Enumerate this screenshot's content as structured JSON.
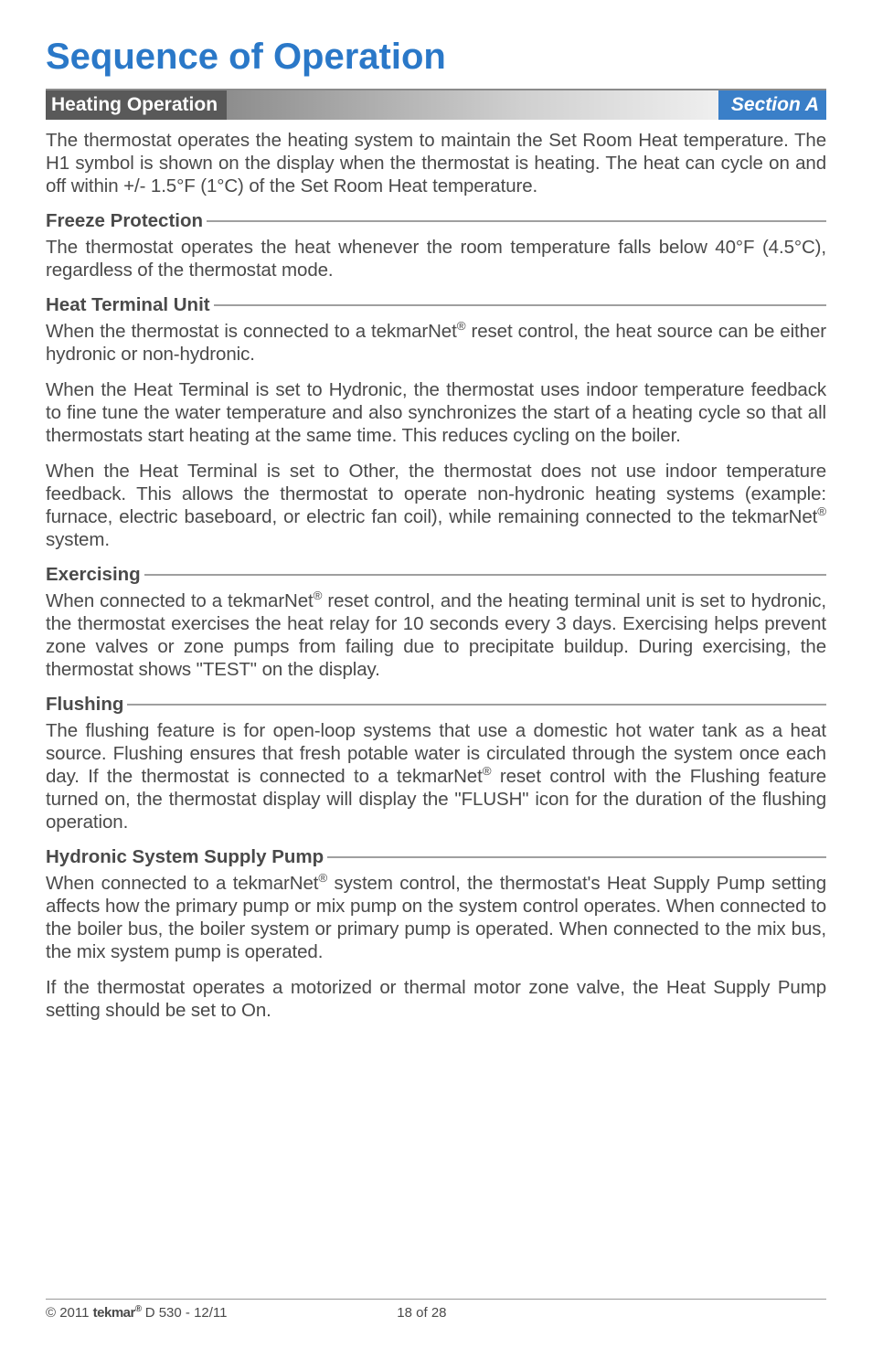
{
  "page_title": "Sequence of Operation",
  "page_title_color": "#2a78c8",
  "section_bar": {
    "left": "Heating Operation",
    "right": "Section A",
    "left_bg": "#595959",
    "right_bg": "#3a7fc8"
  },
  "intro_para": "The thermostat operates the heating system to maintain the Set Room Heat temperature. The H1 symbol is shown on the display when the thermostat is heating. The heat can cycle on and off within +/- 1.5°F (1°C) of the Set Room Heat temperature.",
  "sections": {
    "freeze": {
      "heading": "Freeze Protection",
      "para": "The thermostat operates the heat whenever the room temperature falls below 40°F (4.5°C), regardless of the thermostat mode."
    },
    "heat_terminal": {
      "heading": "Heat Terminal Unit",
      "p1_a": "When the thermostat is connected to a tekmarNet",
      "p1_b": " reset control, the heat source can be either hydronic or non-hydronic.",
      "p2": "When the Heat Terminal is set to Hydronic, the thermostat uses indoor temperature feedback to fine tune the water temperature and also synchronizes the start of a heating cycle so that all thermostats start heating at the same time. This reduces cycling on the boiler.",
      "p3_a": "When the Heat Terminal is set to Other, the thermostat does not use indoor temperature feedback. This allows the thermostat to operate non-hydronic heating systems (example: furnace, electric baseboard, or electric fan coil), while remaining connected to the tekmarNet",
      "p3_b": " system."
    },
    "exercising": {
      "heading": "Exercising",
      "p_a": "When connected to a tekmarNet",
      "p_b": " reset control, and the heating terminal unit is set to hydronic, the thermostat exercises the heat relay for 10 seconds every 3 days. Exercising helps prevent zone valves or zone pumps from failing due to precipitate buildup. During exercising, the thermostat shows \"TEST\" on the display."
    },
    "flushing": {
      "heading": "Flushing",
      "p_a": "The flushing feature is for open-loop systems that use a domestic hot water tank as a heat source. Flushing ensures that fresh potable water is circulated through the system once each day. If the thermostat is connected to a tekmarNet",
      "p_b": " reset control with the Flushing feature turned on, the thermostat display will display the \"FLUSH\" icon for the duration of the flushing operation."
    },
    "hydronic": {
      "heading": "Hydronic System Supply Pump",
      "p1_a": "When connected to a tekmarNet",
      "p1_b": " system control, the thermostat's Heat Supply Pump setting affects how the primary pump or mix pump on the system control operates. When connected to the boiler bus, the boiler system or primary pump is operated. When connected to the mix bus, the mix system pump is operated.",
      "p2": "If the thermostat operates a motorized or thermal motor zone valve, the Heat Supply Pump setting should be set to On."
    }
  },
  "reg": "®",
  "footer": {
    "copyright": "© 2011 ",
    "brand": "tekmar",
    "brand_sup": "®",
    "doc": "  D 530 - 12/11",
    "page": "18 of 28"
  }
}
